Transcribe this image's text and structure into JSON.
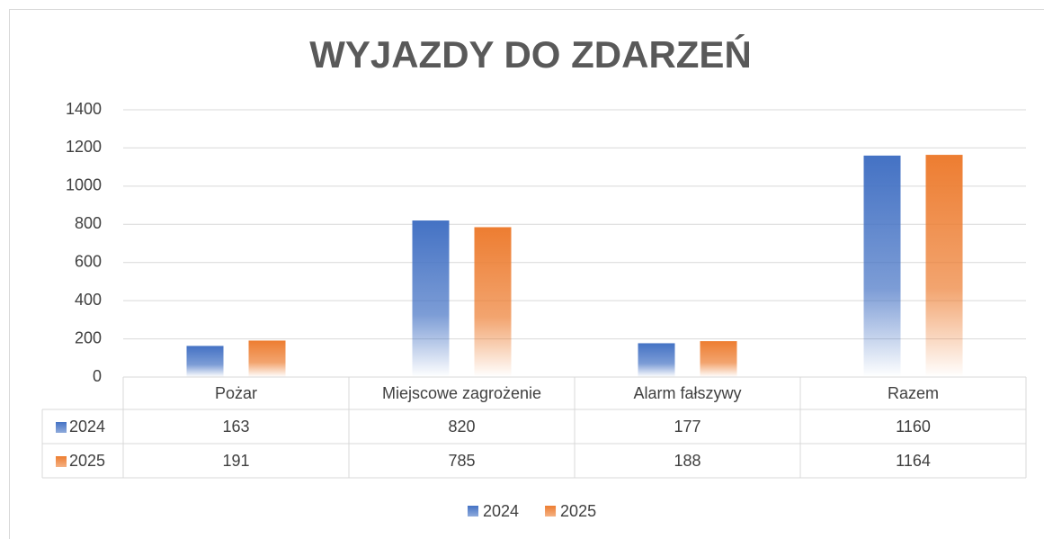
{
  "chart_data": {
    "type": "bar",
    "title": "WYJAZDY DO ZDARZEŃ",
    "categories": [
      "Pożar",
      "Miejscowe zagrożenie",
      "Alarm fałszywy",
      "Razem"
    ],
    "series": [
      {
        "name": "2024",
        "color": "#4472c4",
        "values": [
          163,
          820,
          177,
          1160
        ]
      },
      {
        "name": "2025",
        "color": "#ed7d31",
        "values": [
          191,
          785,
          188,
          1164
        ]
      }
    ],
    "ylim": [
      0,
      1400
    ],
    "yticks": [
      0,
      200,
      400,
      600,
      800,
      1000,
      1200,
      1400
    ],
    "grid": true,
    "data_table": true,
    "legend": "bottom"
  }
}
